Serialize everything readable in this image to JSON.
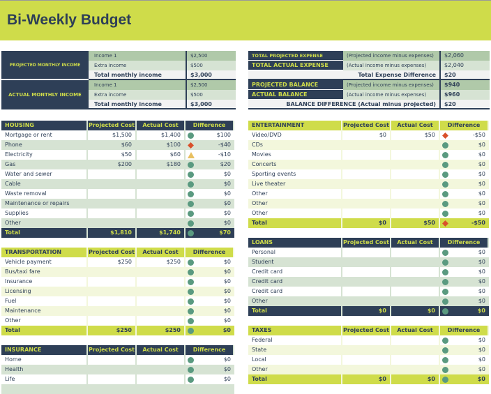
{
  "title": "Bi-Weekly Budget",
  "income": {
    "projected_label": "PROJECTED MONTHLY INCOME",
    "actual_label": "ACTUAL MONTHLY INCOME",
    "projected": [
      [
        "Income 1",
        "$2,500"
      ],
      [
        "Extra income",
        "$500"
      ],
      [
        "Total monthly income",
        "$3,000"
      ]
    ],
    "actual": [
      [
        "Income 1",
        "$2,500"
      ],
      [
        "Extra income",
        "$500"
      ],
      [
        "Total monthly income",
        "$3,000"
      ]
    ]
  },
  "summary": {
    "rows": [
      [
        "TOTAL PROJECTED EXPENSE",
        "(Projected income minus expenses)",
        "$2,060"
      ],
      [
        "TOTAL ACTUAL EXPENSE",
        "(Actual income minus expenses)",
        "$2,040"
      ],
      [
        "Total Expense Difference",
        "",
        "$20"
      ],
      [
        "PROJECTED BALANCE",
        "(Projected income minus expenses)",
        "$940"
      ],
      [
        "ACTUAL BALANCE",
        "(Actual income minus expenses)",
        "$960"
      ],
      [
        "BALANCE DIFFERENCE (Actual minus projected)",
        "",
        "$20"
      ]
    ]
  },
  "columns": [
    "Projected Cost",
    "Actual Cost",
    "Difference"
  ],
  "colors": {
    "navy": "#2e3f57",
    "lime": "#cfdc4a",
    "ok": "#5a9a80",
    "bad": "#d9502a",
    "warn": "#e8c060"
  },
  "tables": [
    {
      "id": "housing",
      "title": "HOUSING",
      "theme": "navy",
      "rows": [
        [
          "Mortgage or rent",
          "$1,500",
          "$1,400",
          "$100",
          "ok"
        ],
        [
          "Phone",
          "$60",
          "$100",
          "-$40",
          "bad"
        ],
        [
          "Electricity",
          "$50",
          "$60",
          "-$10",
          "warn"
        ],
        [
          "Gas",
          "$200",
          "$180",
          "$20",
          "ok"
        ],
        [
          "Water and sewer",
          "",
          "",
          "$0",
          "ok"
        ],
        [
          "Cable",
          "",
          "",
          "$0",
          "ok"
        ],
        [
          "Waste removal",
          "",
          "",
          "$0",
          "ok"
        ],
        [
          "Maintenance or repairs",
          "",
          "",
          "$0",
          "ok"
        ],
        [
          "Supplies",
          "",
          "",
          "$0",
          "ok"
        ],
        [
          "Other",
          "",
          "",
          "$0",
          "ok"
        ]
      ],
      "total": [
        "Total",
        "$1,810",
        "$1,740",
        "$70",
        "ok"
      ]
    },
    {
      "id": "transportation",
      "title": "TRANSPORTATION",
      "theme": "lime",
      "rows": [
        [
          "Vehicle payment",
          "$250",
          "$250",
          "$0",
          "ok"
        ],
        [
          "Bus/taxi fare",
          "",
          "",
          "$0",
          "ok"
        ],
        [
          "Insurance",
          "",
          "",
          "$0",
          "ok"
        ],
        [
          "Licensing",
          "",
          "",
          "$0",
          "ok"
        ],
        [
          "Fuel",
          "",
          "",
          "$0",
          "ok"
        ],
        [
          "Maintenance",
          "",
          "",
          "$0",
          "ok"
        ],
        [
          "Other",
          "",
          "",
          "$0",
          "ok"
        ]
      ],
      "total": [
        "Total",
        "$250",
        "$250",
        "$0",
        "ok"
      ]
    },
    {
      "id": "insurance",
      "title": "INSURANCE",
      "theme": "navy",
      "rows": [
        [
          "Home",
          "",
          "",
          "$0",
          "ok"
        ],
        [
          "Health",
          "",
          "",
          "$0",
          "ok"
        ],
        [
          "Life",
          "",
          "",
          "$0",
          "ok"
        ],
        [
          "",
          "",
          "",
          "",
          "ok"
        ]
      ]
    },
    {
      "id": "entertainment",
      "title": "ENTERTAINMENT",
      "theme": "lime",
      "rows": [
        [
          "Video/DVD",
          "$0",
          "$50",
          "-$50",
          "bad"
        ],
        [
          "CDs",
          "",
          "",
          "$0",
          "ok"
        ],
        [
          "Movies",
          "",
          "",
          "$0",
          "ok"
        ],
        [
          "Concerts",
          "",
          "",
          "$0",
          "ok"
        ],
        [
          "Sporting events",
          "",
          "",
          "$0",
          "ok"
        ],
        [
          "Live theater",
          "",
          "",
          "$0",
          "ok"
        ],
        [
          "Other",
          "",
          "",
          "$0",
          "ok"
        ],
        [
          "Other",
          "",
          "",
          "$0",
          "ok"
        ],
        [
          "Other",
          "",
          "",
          "$0",
          "ok"
        ]
      ],
      "total": [
        "Total",
        "$0",
        "$50",
        "-$50",
        "bad"
      ]
    },
    {
      "id": "loans",
      "title": "LOANS",
      "theme": "navy",
      "rows": [
        [
          "Personal",
          "",
          "",
          "$0",
          "ok"
        ],
        [
          "Student",
          "",
          "",
          "$0",
          "ok"
        ],
        [
          "Credit card",
          "",
          "",
          "$0",
          "ok"
        ],
        [
          "Credit card",
          "",
          "",
          "$0",
          "ok"
        ],
        [
          "Credit card",
          "",
          "",
          "$0",
          "ok"
        ],
        [
          "Other",
          "",
          "",
          "$0",
          "ok"
        ]
      ],
      "total": [
        "Total",
        "$0",
        "$0",
        "$0",
        "ok"
      ]
    },
    {
      "id": "taxes",
      "title": "TAXES",
      "theme": "lime",
      "rows": [
        [
          "Federal",
          "",
          "",
          "$0",
          "ok"
        ],
        [
          "State",
          "",
          "",
          "$0",
          "ok"
        ],
        [
          "Local",
          "",
          "",
          "$0",
          "ok"
        ],
        [
          "Other",
          "",
          "",
          "$0",
          "ok"
        ]
      ],
      "total": [
        "Total",
        "$0",
        "$0",
        "$0",
        "ok"
      ]
    }
  ]
}
